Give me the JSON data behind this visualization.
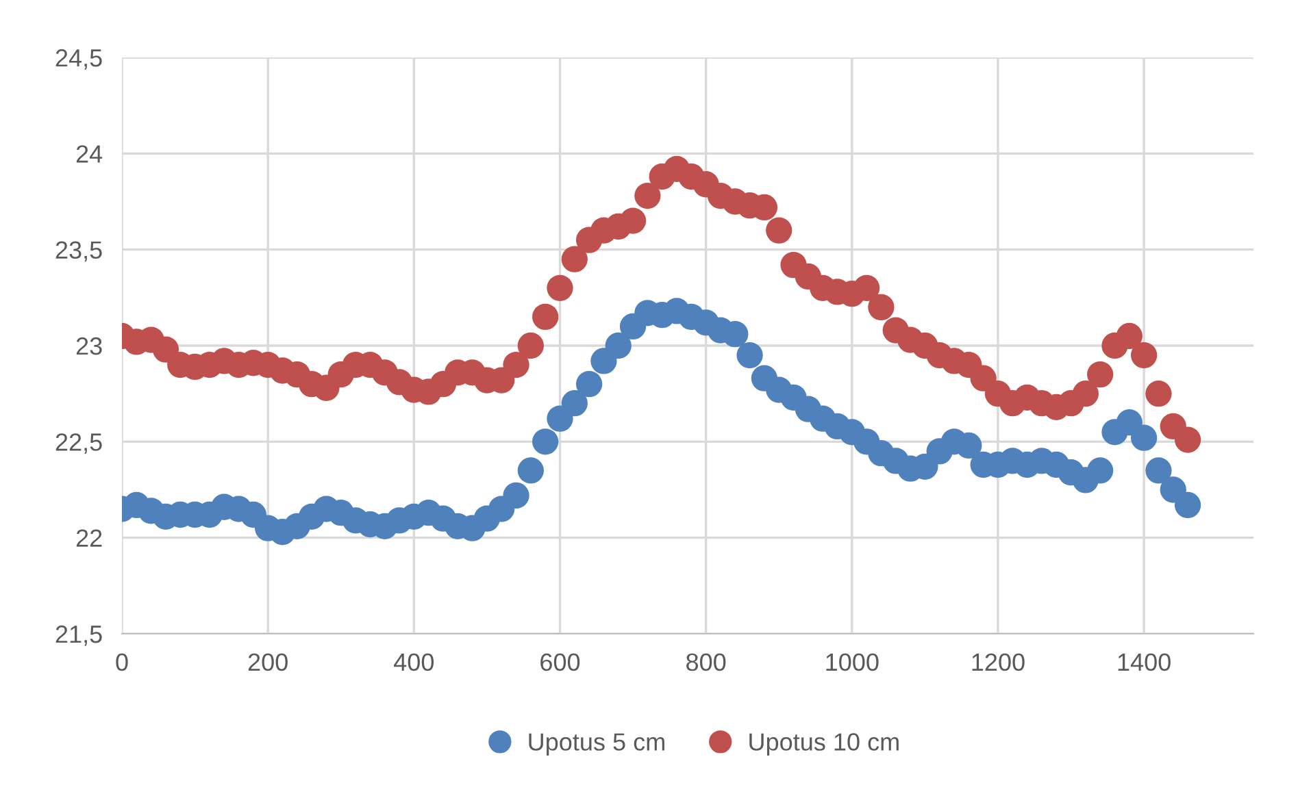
{
  "chart_data": {
    "type": "scatter",
    "marker": "circle",
    "grid": true,
    "legend": "bottom",
    "x": [
      0,
      20,
      40,
      60,
      80,
      100,
      120,
      140,
      160,
      180,
      200,
      220,
      240,
      260,
      280,
      300,
      320,
      340,
      360,
      380,
      400,
      420,
      440,
      460,
      480,
      500,
      520,
      540,
      560,
      580,
      600,
      620,
      640,
      660,
      680,
      700,
      720,
      740,
      760,
      780,
      800,
      820,
      840,
      860,
      880,
      900,
      920,
      940,
      960,
      980,
      1000,
      1020,
      1040,
      1060,
      1080,
      1100,
      1120,
      1140,
      1160,
      1180,
      1200,
      1220,
      1240,
      1260,
      1280,
      1300,
      1320,
      1340,
      1360,
      1380,
      1400,
      1420,
      1440,
      1460
    ],
    "xlim": [
      0,
      1550
    ],
    "xticks": [
      0,
      200,
      400,
      600,
      800,
      1000,
      1200,
      1400
    ],
    "ylim": [
      21.5,
      24.5
    ],
    "yticks": [
      {
        "value": 21.5,
        "label": "21,5"
      },
      22,
      {
        "value": 22.5,
        "label": "22,5"
      },
      23,
      {
        "value": 23.5,
        "label": "23,5"
      },
      24,
      {
        "value": 24.5,
        "label": "24,5"
      }
    ],
    "series": [
      {
        "name": "Upotus 5 cm",
        "color": "#4f81bd",
        "values": [
          22.15,
          22.17,
          22.14,
          22.11,
          22.12,
          22.12,
          22.12,
          22.16,
          22.15,
          22.12,
          22.05,
          22.03,
          22.06,
          22.11,
          22.15,
          22.13,
          22.09,
          22.07,
          22.06,
          22.09,
          22.11,
          22.13,
          22.1,
          22.06,
          22.05,
          22.1,
          22.15,
          22.22,
          22.35,
          22.5,
          22.62,
          22.7,
          22.8,
          22.92,
          23.0,
          23.1,
          23.17,
          23.16,
          23.18,
          23.15,
          23.12,
          23.08,
          23.06,
          22.95,
          22.83,
          22.77,
          22.73,
          22.67,
          22.62,
          22.58,
          22.55,
          22.5,
          22.44,
          22.4,
          22.36,
          22.37,
          22.45,
          22.5,
          22.48,
          22.38,
          22.38,
          22.4,
          22.38,
          22.4,
          22.38,
          22.34,
          22.3,
          22.35,
          22.55,
          22.6,
          22.52,
          22.35,
          22.25,
          22.17
        ]
      },
      {
        "name": "Upotus 10 cm",
        "color": "#c0504d",
        "values": [
          23.05,
          23.02,
          23.03,
          22.98,
          22.9,
          22.89,
          22.9,
          22.92,
          22.9,
          22.91,
          22.9,
          22.87,
          22.85,
          22.8,
          22.78,
          22.85,
          22.9,
          22.9,
          22.86,
          22.81,
          22.77,
          22.76,
          22.8,
          22.86,
          22.86,
          22.82,
          22.82,
          22.9,
          23.0,
          23.15,
          23.3,
          23.45,
          23.55,
          23.6,
          23.62,
          23.65,
          23.78,
          23.88,
          23.92,
          23.88,
          23.84,
          23.78,
          23.75,
          23.73,
          23.72,
          23.6,
          23.42,
          23.36,
          23.3,
          23.28,
          23.27,
          23.3,
          23.2,
          23.08,
          23.03,
          23.0,
          22.95,
          22.92,
          22.9,
          22.83,
          22.75,
          22.7,
          22.73,
          22.7,
          22.68,
          22.7,
          22.75,
          22.85,
          23.0,
          23.05,
          22.95,
          22.75,
          22.58,
          22.51
        ]
      }
    ]
  }
}
